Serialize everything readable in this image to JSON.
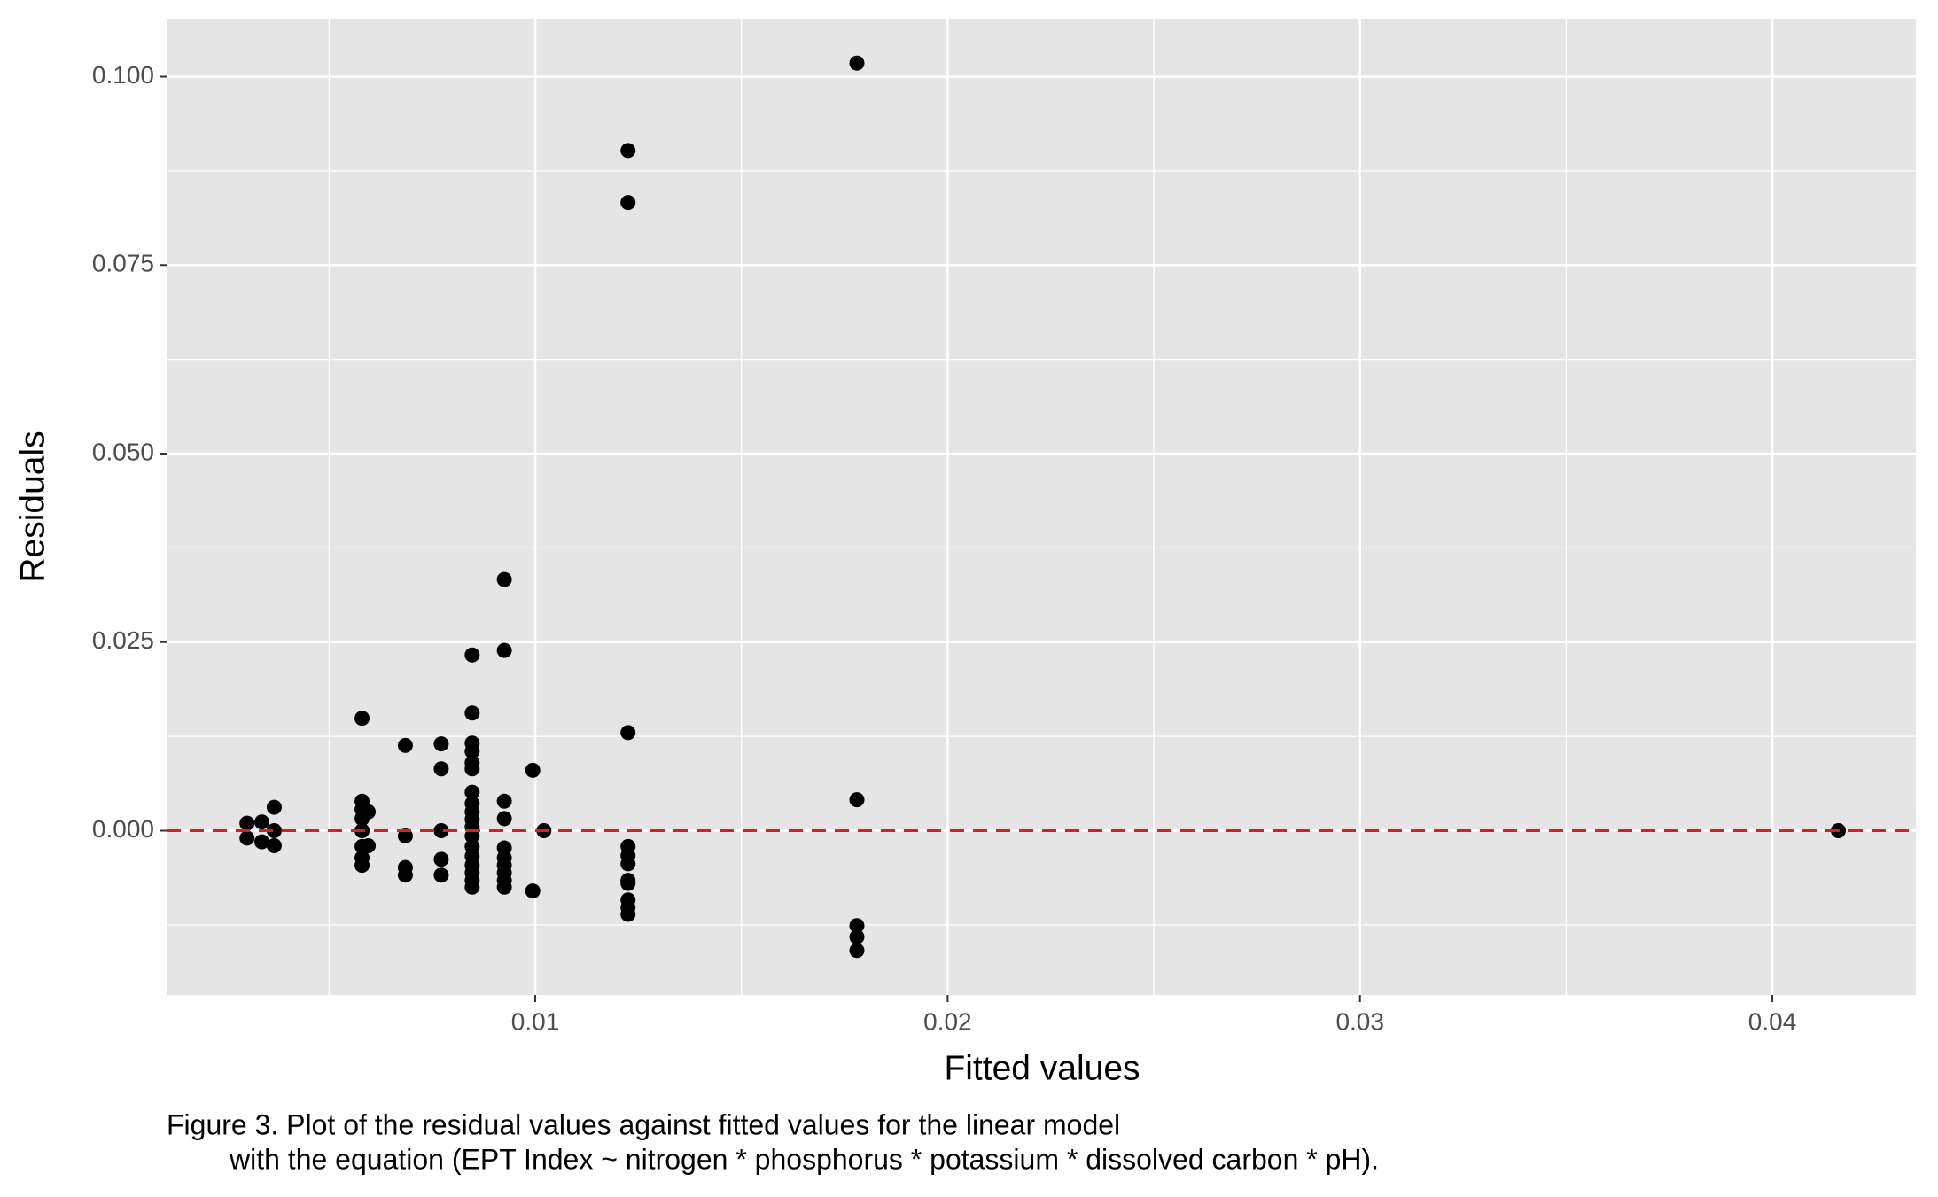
{
  "chart_data": {
    "type": "scatter",
    "x_label": "Fitted values",
    "y_label": "Residuals",
    "caption": [
      "Figure 3. Plot of the residual values against fitted values for the linear model",
      "with the equation (EPT Index ~ nitrogen * phosphorus * potassium * dissolved carbon * pH)."
    ],
    "xlim": [
      0.00106,
      0.04348
    ],
    "ylim": [
      -0.0218,
      0.1077
    ],
    "xticks": [
      0.01,
      0.02,
      0.03,
      0.04
    ],
    "yticks": [
      {
        "value": 0,
        "label": "0.000"
      },
      {
        "value": 0.025,
        "label": "0.025"
      },
      {
        "value": 0.05,
        "label": "0.050"
      },
      {
        "value": 0.075,
        "label": "0.075"
      },
      {
        "value": 0.1,
        "label": "0.100"
      }
    ],
    "xminor": [
      0.005,
      0.015,
      0.025,
      0.035
    ],
    "yminor": [
      -0.0125,
      0.0125,
      0.0375,
      0.0625,
      0.0875
    ],
    "grid": true,
    "panel_color": "#e5e5e5",
    "reference_line": {
      "y": 0,
      "color": "#e41a1c",
      "style": "dashed"
    },
    "series": [
      {
        "color": "#000000",
        "x": [
          0.00301,
          0.00301,
          0.00337,
          0.00337,
          0.00367,
          0.00367,
          0.00367,
          0.0058,
          0.0058,
          0.0058,
          0.0058,
          0.0058,
          0.0058,
          0.0058,
          0.0058,
          0.00595,
          0.00595,
          0.00685,
          0.00685,
          0.00685,
          0.00685,
          0.00772,
          0.00772,
          0.00772,
          0.00772,
          0.00772,
          0.00847,
          0.00847,
          0.00847,
          0.00847,
          0.00847,
          0.00847,
          0.00847,
          0.00847,
          0.00847,
          0.00847,
          0.00847,
          0.00847,
          0.00847,
          0.00847,
          0.00847,
          0.00847,
          0.00847,
          0.00847,
          0.00925,
          0.00925,
          0.00925,
          0.00925,
          0.00925,
          0.00925,
          0.00925,
          0.00925,
          0.00925,
          0.00925,
          0.00994,
          0.00994,
          0.01021,
          0.01225,
          0.01225,
          0.01225,
          0.01225,
          0.01225,
          0.01225,
          0.01225,
          0.01225,
          0.01225,
          0.01225,
          0.01225,
          0.0178,
          0.0178,
          0.0178,
          0.0178,
          0.0178,
          0.0416
        ],
        "values": [
          0.00098,
          -0.00098,
          0.00115,
          -0.00148,
          0.0031,
          0,
          -0.002,
          0.0149,
          0.0039,
          0.0028,
          0.0016,
          0,
          -0.0021,
          -0.0036,
          -0.0046,
          0.0025,
          -0.002,
          0.0113,
          -0.0007,
          -0.0049,
          -0.0059,
          0.0115,
          0.0082,
          0,
          -0.0038,
          -0.0059,
          0.0233,
          0.0156,
          0.0116,
          0.0105,
          0.009,
          0.0082,
          0.0051,
          0.0036,
          0.0025,
          0.0015,
          0.0005,
          -0.0007,
          -0.0021,
          -0.0034,
          -0.0046,
          -0.0056,
          -0.0066,
          -0.0075,
          0.0333,
          0.0239,
          0.0039,
          0.0016,
          -0.0023,
          -0.0036,
          -0.0046,
          -0.0056,
          -0.0066,
          -0.0075,
          0.008,
          -0.008,
          0,
          0.0902,
          0.0833,
          0.013,
          -0.0021,
          -0.0033,
          -0.0044,
          -0.0066,
          -0.007,
          -0.0092,
          -0.0102,
          -0.0111,
          0.1018,
          0.0041,
          -0.0126,
          -0.0141,
          -0.0159,
          0
        ]
      }
    ]
  }
}
